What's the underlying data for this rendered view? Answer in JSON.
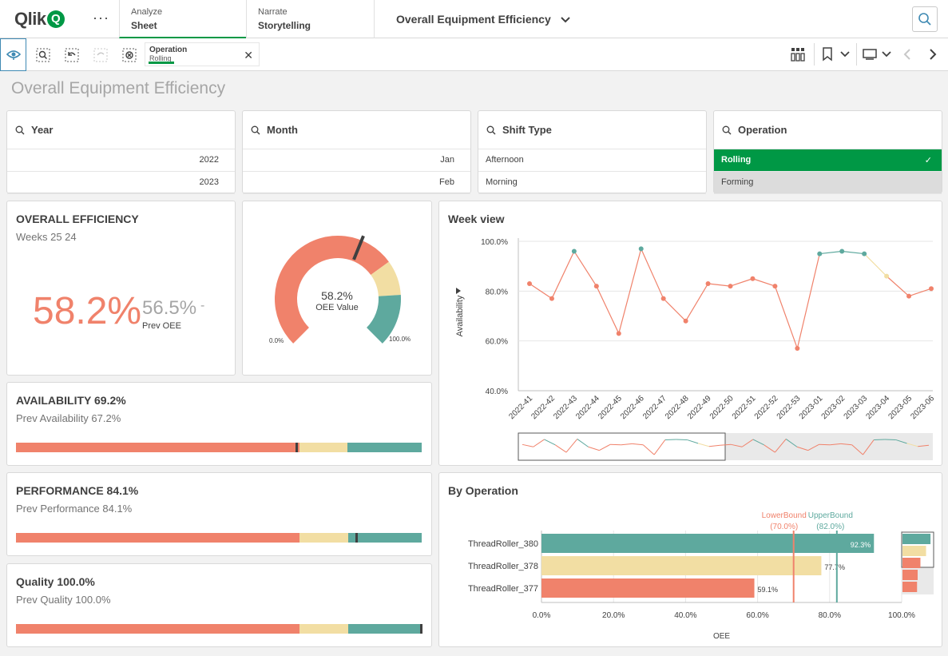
{
  "app": {
    "logo": "Qlik",
    "more_label": "···"
  },
  "nav": {
    "analyze": {
      "line1": "Analyze",
      "line2": "Sheet"
    },
    "narrate": {
      "line1": "Narrate",
      "line2": "Storytelling"
    },
    "sheet_title": "Overall Equipment Efficiency"
  },
  "selection": {
    "field": "Operation",
    "value": "Rolling"
  },
  "page": {
    "heading": "Overall Equipment Efficiency"
  },
  "filters": {
    "year": {
      "label": "Year",
      "items": [
        "2022",
        "2023"
      ]
    },
    "month": {
      "label": "Month",
      "items": [
        "Jan",
        "Feb"
      ]
    },
    "shift": {
      "label": "Shift Type",
      "items": [
        "Afternoon",
        "Morning"
      ]
    },
    "operation": {
      "label": "Operation",
      "items": [
        "Rolling",
        "Forming"
      ]
    }
  },
  "oee": {
    "title": "OVERALL EFFICIENCY",
    "subtitle": "Weeks 25 24",
    "value": "58.2%",
    "prev_value": "56.5%",
    "prev_label": "Prev OEE",
    "trend": "-"
  },
  "gauge": {
    "value_text": "58.2%",
    "label": "OEE Value",
    "min_label": "0.0%",
    "max_label": "100.0%",
    "value": 0.582
  },
  "availability": {
    "title": "AVAILABILITY 69.2%",
    "prev": "Prev Availability 67.2%",
    "value": 0.692
  },
  "performance": {
    "title": "PERFORMANCE 84.1%",
    "prev": "Prev Performance 84.1%",
    "value": 0.841
  },
  "quality": {
    "title": "Quality 100.0%",
    "prev": "Prev Quality 100.0%",
    "value": 1.0
  },
  "colors": {
    "red": "#f0826b",
    "yellow": "#f2dea3",
    "teal": "#5ea99e",
    "green": "#009845",
    "grid": "#e6e6e6"
  },
  "week_chart": {
    "title": "Week view",
    "chart_data": {
      "type": "line",
      "ylabel": "Availability",
      "ylim": [
        40,
        100
      ],
      "yticks": [
        "100.0%",
        "80.0%",
        "60.0%",
        "40.0%"
      ],
      "categories": [
        "2022-41",
        "2022-42",
        "2022-43",
        "2022-44",
        "2022-45",
        "2022-46",
        "2022-47",
        "2022-48",
        "2022-49",
        "2022-50",
        "2022-51",
        "2022-52",
        "2022-53",
        "2023-01",
        "2023-02",
        "2023-03",
        "2023-04",
        "2023-05",
        "2023-06"
      ],
      "values": [
        83,
        77,
        96,
        82,
        63,
        97,
        77,
        68,
        83,
        82,
        85,
        82,
        57,
        95,
        96,
        95,
        86,
        78,
        81
      ]
    }
  },
  "by_operation": {
    "title": "By Operation",
    "chart_data": {
      "type": "bar",
      "xlabel": "OEE",
      "xlim": [
        0,
        100
      ],
      "xticks": [
        "0.0%",
        "20.0%",
        "40.0%",
        "60.0%",
        "80.0%",
        "100.0%"
      ],
      "categories": [
        "ThreadRoller_380",
        "ThreadRoller_378",
        "ThreadRoller_377"
      ],
      "values": [
        92.3,
        77.7,
        59.1
      ],
      "value_labels": [
        "92.3%",
        "77.7%",
        "59.1%"
      ],
      "reference_lines": [
        {
          "name": "LowerBound",
          "value_label": "(70.0%)",
          "value": 70
        },
        {
          "name": "UpperBound",
          "value_label": "(82.0%)",
          "value": 82
        }
      ]
    }
  }
}
